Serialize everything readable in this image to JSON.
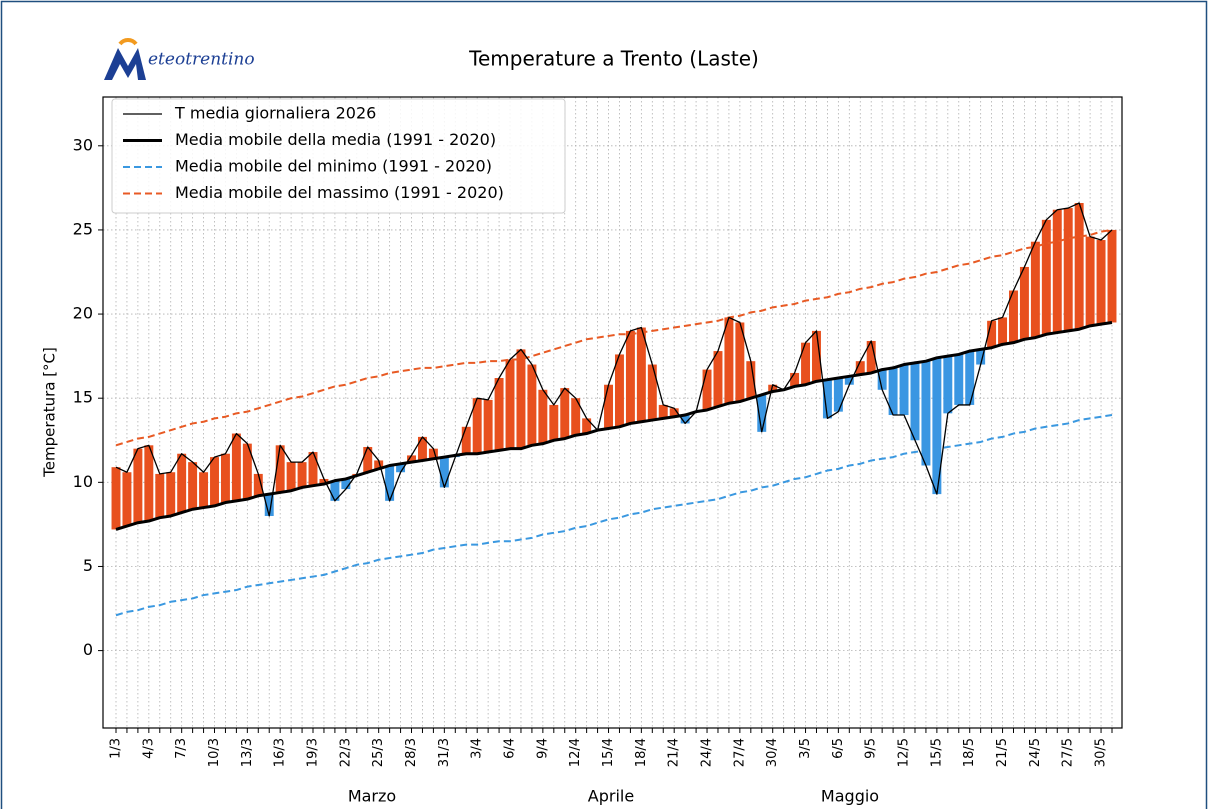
{
  "chart_data": {
    "type": "line",
    "logo": "eteotrentino",
    "title": "Temperature a Trento (Laste)",
    "y_label": "Temperatura [°C]",
    "categories": [
      "1/3",
      null,
      null,
      "4/3",
      null,
      null,
      "7/3",
      null,
      null,
      "10/3",
      null,
      null,
      "13/3",
      null,
      null,
      "16/3",
      null,
      null,
      "19/3",
      null,
      null,
      "22/3",
      null,
      null,
      "25/3",
      null,
      null,
      "28/3",
      null,
      null,
      "31/3",
      null,
      null,
      "3/4",
      null,
      null,
      "6/4",
      null,
      null,
      "9/4",
      null,
      null,
      "12/4",
      null,
      null,
      "15/4",
      null,
      null,
      "18/4",
      null,
      null,
      "21/4",
      null,
      null,
      "24/4",
      null,
      null,
      "27/4",
      null,
      null,
      "30/4",
      null,
      null,
      "3/5",
      null,
      null,
      "6/5",
      null,
      null,
      "9/5",
      null,
      null,
      "12/5",
      null,
      null,
      "15/5",
      null,
      null,
      "18/5",
      null,
      null,
      "21/5",
      null,
      null,
      "24/5",
      null,
      null,
      "27/5",
      null,
      null,
      "30/5",
      null
    ],
    "month_labels": [
      "Marzo",
      "Aprile",
      "Maggio"
    ],
    "series": [
      {
        "name": "T media giornaliera 2026",
        "color": "#000000",
        "width": 1.3,
        "dashed": false,
        "values": [
          10.9,
          10.6,
          12.0,
          12.2,
          10.5,
          10.6,
          11.7,
          11.2,
          10.6,
          11.5,
          11.7,
          12.9,
          12.3,
          10.5,
          8.0,
          12.2,
          11.2,
          11.2,
          11.8,
          10.2,
          8.9,
          9.6,
          10.5,
          12.1,
          11.3,
          8.9,
          10.6,
          11.6,
          12.7,
          12.0,
          9.7,
          11.5,
          13.3,
          15.0,
          14.9,
          16.2,
          17.3,
          17.9,
          17.0,
          15.5,
          14.6,
          15.6,
          15.0,
          13.8,
          13.1,
          15.8,
          17.6,
          19.0,
          19.2,
          17.0,
          14.6,
          14.4,
          13.5,
          14.2,
          16.7,
          17.8,
          19.8,
          19.5,
          17.2,
          13.0,
          15.8,
          15.5,
          16.5,
          18.3,
          19.0,
          13.8,
          14.2,
          15.8,
          17.2,
          18.4,
          15.5,
          14.0,
          14.0,
          12.5,
          11.0,
          9.3,
          14.1,
          14.6,
          14.6,
          17.0,
          19.6,
          19.8,
          21.4,
          22.8,
          24.3,
          25.6,
          26.2,
          26.3,
          26.6,
          24.6,
          24.4,
          25.0
        ]
      },
      {
        "name": "Media mobile della media (1991 - 2020)",
        "color": "#000000",
        "width": 3,
        "dashed": false,
        "values": [
          7.2,
          7.4,
          7.6,
          7.7,
          7.9,
          8.0,
          8.2,
          8.4,
          8.5,
          8.6,
          8.8,
          8.9,
          9.0,
          9.2,
          9.3,
          9.4,
          9.5,
          9.7,
          9.8,
          9.9,
          10.1,
          10.2,
          10.4,
          10.6,
          10.8,
          11.0,
          11.1,
          11.2,
          11.3,
          11.4,
          11.5,
          11.6,
          11.7,
          11.7,
          11.8,
          11.9,
          12.0,
          12.0,
          12.2,
          12.3,
          12.5,
          12.6,
          12.8,
          12.9,
          13.1,
          13.2,
          13.3,
          13.5,
          13.6,
          13.7,
          13.8,
          13.9,
          14.0,
          14.2,
          14.3,
          14.5,
          14.7,
          14.8,
          15.0,
          15.2,
          15.4,
          15.5,
          15.7,
          15.8,
          16.0,
          16.1,
          16.2,
          16.3,
          16.4,
          16.5,
          16.7,
          16.8,
          17.0,
          17.1,
          17.2,
          17.4,
          17.5,
          17.6,
          17.8,
          17.9,
          18.0,
          18.2,
          18.3,
          18.5,
          18.6,
          18.8,
          18.9,
          19.0,
          19.1,
          19.3,
          19.4,
          19.5
        ]
      },
      {
        "name": "Media mobile del minimo (1991 - 2020)",
        "color": "#3a98e0",
        "width": 2,
        "dashed": true,
        "values": [
          2.1,
          2.3,
          2.4,
          2.6,
          2.7,
          2.9,
          3.0,
          3.1,
          3.3,
          3.4,
          3.5,
          3.6,
          3.8,
          3.9,
          4.0,
          4.1,
          4.2,
          4.3,
          4.4,
          4.5,
          4.7,
          4.9,
          5.1,
          5.2,
          5.4,
          5.5,
          5.6,
          5.7,
          5.8,
          6.0,
          6.1,
          6.2,
          6.3,
          6.3,
          6.4,
          6.5,
          6.5,
          6.6,
          6.7,
          6.9,
          7.0,
          7.1,
          7.3,
          7.4,
          7.6,
          7.8,
          7.9,
          8.1,
          8.2,
          8.4,
          8.5,
          8.6,
          8.7,
          8.8,
          8.9,
          9.0,
          9.2,
          9.4,
          9.5,
          9.7,
          9.8,
          10.0,
          10.2,
          10.3,
          10.5,
          10.7,
          10.8,
          11.0,
          11.1,
          11.3,
          11.4,
          11.5,
          11.7,
          11.8,
          11.9,
          12.0,
          12.1,
          12.2,
          12.3,
          12.4,
          12.6,
          12.7,
          12.9,
          13.0,
          13.2,
          13.3,
          13.4,
          13.5,
          13.7,
          13.8,
          13.9,
          14.0
        ]
      },
      {
        "name": "Media mobile del massimo (1991 - 2020)",
        "color": "#e85a24",
        "width": 2,
        "dashed": true,
        "values": [
          12.2,
          12.4,
          12.6,
          12.7,
          12.9,
          13.1,
          13.3,
          13.5,
          13.6,
          13.8,
          13.9,
          14.1,
          14.2,
          14.4,
          14.6,
          14.8,
          15.0,
          15.1,
          15.3,
          15.5,
          15.7,
          15.8,
          16.0,
          16.2,
          16.3,
          16.5,
          16.6,
          16.7,
          16.8,
          16.8,
          16.9,
          17.0,
          17.1,
          17.1,
          17.2,
          17.2,
          17.3,
          17.3,
          17.5,
          17.7,
          17.9,
          18.1,
          18.3,
          18.5,
          18.6,
          18.7,
          18.8,
          18.8,
          18.9,
          19.0,
          19.1,
          19.2,
          19.3,
          19.4,
          19.5,
          19.6,
          19.8,
          19.9,
          20.1,
          20.2,
          20.4,
          20.5,
          20.6,
          20.8,
          20.9,
          21.0,
          21.2,
          21.3,
          21.5,
          21.6,
          21.8,
          21.9,
          22.1,
          22.2,
          22.4,
          22.5,
          22.7,
          22.9,
          23.0,
          23.2,
          23.4,
          23.5,
          23.7,
          23.9,
          24.0,
          24.2,
          24.3,
          24.5,
          24.6,
          24.7,
          24.9,
          25.0
        ]
      }
    ],
    "above_color": "#e8501e",
    "below_color": "#3a96e2",
    "ylim": [
      -4.6,
      32.9
    ],
    "yticks": [
      0,
      5,
      10,
      15,
      20,
      25,
      30
    ],
    "grid": true,
    "legend": "upper left"
  }
}
